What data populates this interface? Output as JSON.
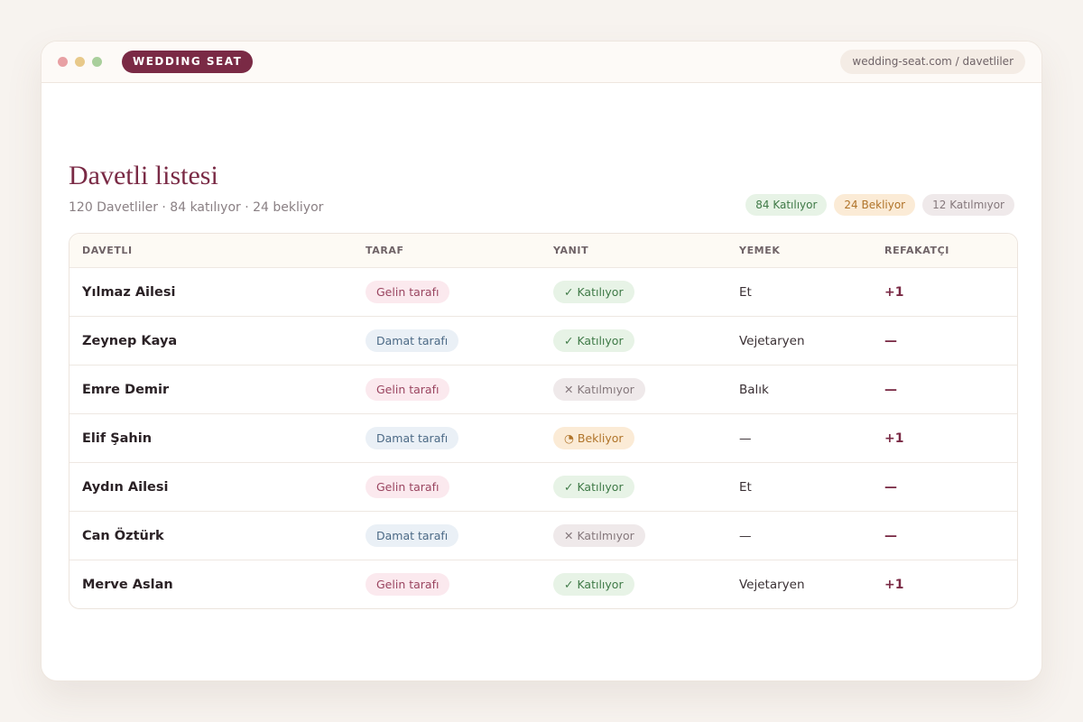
{
  "window": {
    "brand": "WEDDING SEAT",
    "url": "wedding-seat.com / davetliler"
  },
  "header": {
    "title": "Davetli listesi",
    "subtitle": "120 Davetliler · 84 katılıyor · 24 bekliyor",
    "badges": [
      {
        "label": "84 Katılıyor",
        "color": "#3f7a47",
        "background": "#e7f3e6"
      },
      {
        "label": "24 Bekliyor",
        "color": "#b0742a",
        "background": "#fbebd6"
      },
      {
        "label": "12 Katılmıyor",
        "color": "#85787c",
        "background": "#efe9ea"
      }
    ]
  },
  "table": {
    "columns": [
      "DAVETLI",
      "TARAF",
      "YANIT",
      "YEMEK",
      "REFAKATÇI"
    ],
    "rows": [
      {
        "name": "Yılmaz Ailesi",
        "side": {
          "label": "Gelin tarafı",
          "color": "#9a4560",
          "background": "#fbe9ee"
        },
        "response": {
          "label": "✓ Katılıyor",
          "color": "#3f7a47",
          "background": "#e7f3e6"
        },
        "meal": "Et",
        "plus": "+1"
      },
      {
        "name": "Zeynep Kaya",
        "side": {
          "label": "Damat tarafı",
          "color": "#4c6a86",
          "background": "#eaf0f6"
        },
        "response": {
          "label": "✓ Katılıyor",
          "color": "#3f7a47",
          "background": "#e7f3e6"
        },
        "meal": "Vejetaryen",
        "plus": "—"
      },
      {
        "name": "Emre Demir",
        "side": {
          "label": "Gelin tarafı",
          "color": "#9a4560",
          "background": "#fbe9ee"
        },
        "response": {
          "label": "✕ Katılmıyor",
          "color": "#85787c",
          "background": "#efe9ea"
        },
        "meal": "Balık",
        "plus": "—"
      },
      {
        "name": "Elif Şahin",
        "side": {
          "label": "Damat tarafı",
          "color": "#4c6a86",
          "background": "#eaf0f6"
        },
        "response": {
          "label": "◔ Bekliyor",
          "color": "#b0742a",
          "background": "#fbebd6"
        },
        "meal": "—",
        "plus": "+1"
      },
      {
        "name": "Aydın Ailesi",
        "side": {
          "label": "Gelin tarafı",
          "color": "#9a4560",
          "background": "#fbe9ee"
        },
        "response": {
          "label": "✓ Katılıyor",
          "color": "#3f7a47",
          "background": "#e7f3e6"
        },
        "meal": "Et",
        "plus": "—"
      },
      {
        "name": "Can Öztürk",
        "side": {
          "label": "Damat tarafı",
          "color": "#4c6a86",
          "background": "#eaf0f6"
        },
        "response": {
          "label": "✕ Katılmıyor",
          "color": "#85787c",
          "background": "#efe9ea"
        },
        "meal": "—",
        "plus": "—"
      },
      {
        "name": "Merve Aslan",
        "side": {
          "label": "Gelin tarafı",
          "color": "#9a4560",
          "background": "#fbe9ee"
        },
        "response": {
          "label": "✓ Katılıyor",
          "color": "#3f7a47",
          "background": "#e7f3e6"
        },
        "meal": "Vejetaryen",
        "plus": "+1"
      }
    ]
  }
}
